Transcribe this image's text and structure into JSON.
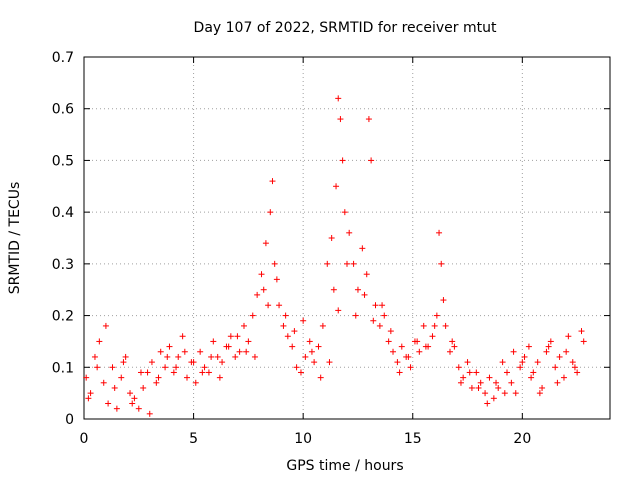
{
  "chart_data": {
    "type": "scatter",
    "title": "Day 107 of 2022, SRMTID for receiver mtut",
    "xlabel": "GPS time / hours",
    "ylabel": "SRMTID / TECUs",
    "xlim": [
      0,
      24
    ],
    "ylim": [
      0,
      0.7
    ],
    "xticks": [
      0,
      5,
      10,
      15,
      20
    ],
    "yticks": [
      0,
      0.1,
      0.2,
      0.3,
      0.4,
      0.5,
      0.6,
      0.7
    ],
    "xtick_labels": [
      "0",
      "5",
      "10",
      "15",
      "20"
    ],
    "ytick_labels": [
      "0",
      "0.1",
      "0.2",
      "0.3",
      "0.4",
      "0.5",
      "0.6",
      "0.7"
    ],
    "grid": true,
    "marker": "+",
    "color": "#ff0000",
    "series": [
      {
        "name": "SRMTID",
        "x": [
          0.1,
          0.3,
          0.5,
          0.7,
          0.9,
          1.1,
          1.3,
          1.5,
          1.7,
          1.9,
          2.1,
          2.3,
          2.5,
          2.7,
          2.9,
          3.1,
          3.3,
          3.5,
          3.7,
          3.9,
          4.1,
          4.3,
          4.5,
          4.7,
          4.9,
          5.1,
          5.3,
          5.5,
          5.7,
          5.9,
          6.1,
          6.3,
          6.5,
          6.7,
          6.9,
          7.1,
          7.3,
          7.5,
          7.7,
          7.9,
          8.1,
          8.3,
          8.5,
          8.6,
          8.7,
          8.9,
          9.1,
          9.3,
          9.5,
          9.7,
          9.9,
          10.1,
          10.3,
          10.5,
          10.7,
          10.9,
          11.1,
          11.3,
          11.5,
          11.6,
          11.7,
          11.8,
          11.9,
          12.1,
          12.3,
          12.5,
          12.7,
          12.9,
          13.0,
          13.1,
          13.3,
          13.5,
          13.7,
          13.9,
          14.1,
          14.3,
          14.5,
          14.7,
          14.9,
          15.1,
          15.3,
          15.5,
          15.7,
          15.9,
          16.1,
          16.2,
          16.3,
          16.5,
          16.7,
          16.9,
          17.1,
          17.3,
          17.5,
          17.7,
          17.9,
          18.1,
          18.3,
          18.5,
          18.7,
          18.9,
          19.1,
          19.3,
          19.5,
          19.7,
          19.9,
          20.1,
          20.3,
          20.5,
          20.7,
          20.9,
          21.1,
          21.3,
          21.5,
          21.7,
          21.9,
          22.1,
          22.3,
          22.5,
          22.7,
          0.2,
          0.6,
          1.0,
          1.4,
          1.8,
          2.2,
          2.6,
          3.0,
          3.4,
          3.8,
          4.2,
          4.6,
          5.0,
          5.4,
          5.8,
          6.2,
          6.6,
          7.0,
          7.4,
          7.8,
          8.2,
          8.4,
          8.8,
          9.2,
          9.6,
          10.0,
          10.4,
          10.8,
          11.2,
          11.4,
          11.6,
          12.0,
          12.4,
          12.8,
          13.2,
          13.6,
          14.0,
          14.4,
          14.8,
          15.2,
          15.6,
          16.0,
          16.4,
          16.8,
          17.2,
          17.6,
          18.0,
          18.4,
          18.8,
          19.2,
          19.6,
          20.0,
          20.4,
          20.8,
          21.2,
          21.6,
          22.0,
          22.4,
          22.8
        ],
        "y": [
          0.08,
          0.05,
          0.12,
          0.15,
          0.07,
          0.03,
          0.1,
          0.02,
          0.08,
          0.12,
          0.05,
          0.04,
          0.02,
          0.06,
          0.09,
          0.11,
          0.07,
          0.13,
          0.1,
          0.14,
          0.09,
          0.12,
          0.16,
          0.08,
          0.11,
          0.07,
          0.13,
          0.1,
          0.09,
          0.15,
          0.12,
          0.11,
          0.14,
          0.16,
          0.12,
          0.13,
          0.18,
          0.15,
          0.2,
          0.24,
          0.28,
          0.34,
          0.4,
          0.46,
          0.3,
          0.22,
          0.18,
          0.16,
          0.14,
          0.1,
          0.09,
          0.12,
          0.15,
          0.11,
          0.14,
          0.18,
          0.3,
          0.35,
          0.45,
          0.62,
          0.58,
          0.5,
          0.4,
          0.36,
          0.3,
          0.25,
          0.33,
          0.28,
          0.58,
          0.5,
          0.22,
          0.18,
          0.2,
          0.15,
          0.13,
          0.11,
          0.14,
          0.12,
          0.1,
          0.15,
          0.13,
          0.18,
          0.14,
          0.16,
          0.2,
          0.36,
          0.3,
          0.18,
          0.13,
          0.14,
          0.1,
          0.08,
          0.11,
          0.06,
          0.09,
          0.07,
          0.05,
          0.08,
          0.04,
          0.06,
          0.11,
          0.09,
          0.07,
          0.05,
          0.1,
          0.12,
          0.14,
          0.09,
          0.11,
          0.06,
          0.13,
          0.15,
          0.1,
          0.12,
          0.08,
          0.16,
          0.11,
          0.09,
          0.17,
          0.04,
          0.1,
          0.18,
          0.06,
          0.11,
          0.03,
          0.09,
          0.01,
          0.08,
          0.12,
          0.1,
          0.13,
          0.11,
          0.09,
          0.12,
          0.08,
          0.14,
          0.16,
          0.13,
          0.12,
          0.25,
          0.22,
          0.27,
          0.2,
          0.17,
          0.19,
          0.13,
          0.08,
          0.11,
          0.25,
          0.21,
          0.3,
          0.2,
          0.24,
          0.19,
          0.22,
          0.17,
          0.09,
          0.12,
          0.15,
          0.14,
          0.18,
          0.23,
          0.15,
          0.07,
          0.09,
          0.06,
          0.03,
          0.07,
          0.05,
          0.13,
          0.11,
          0.08,
          0.05,
          0.14,
          0.07,
          0.13,
          0.1,
          0.15
        ]
      }
    ]
  }
}
